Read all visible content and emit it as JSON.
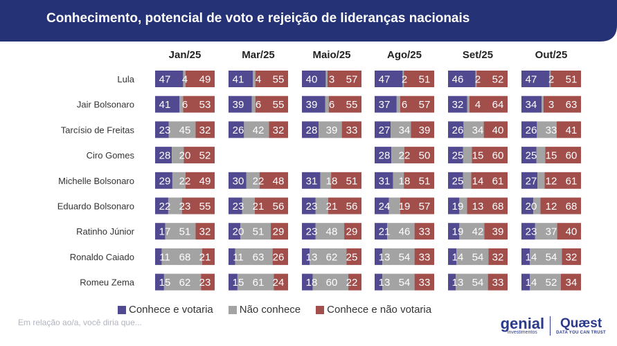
{
  "title": "Conhecimento, potencial de voto e rejeição de lideranças nacionais",
  "footnote": "Em relação ao/a, você diria que...",
  "logos": {
    "genial": "genial",
    "genial_sub": "investimentos",
    "quaest": "Quæst",
    "quaest_sub": "DATA YOU CAN TRUST"
  },
  "colors": {
    "conhece_votaria": "#514a91",
    "nao_conhece": "#a3a3a3",
    "nao_votaria": "#a24e4b",
    "header": "#253276"
  },
  "legend": [
    {
      "label": "Conhece e votaria",
      "color": "#514a91"
    },
    {
      "label": "Não conhece",
      "color": "#a3a3a3"
    },
    {
      "label": "Conhece e não votaria",
      "color": "#a24e4b"
    }
  ],
  "chart_data": {
    "type": "bar",
    "stacked": true,
    "orientation": "horizontal",
    "periods": [
      "Jan/25",
      "Mar/25",
      "Maio/25",
      "Ago/25",
      "Set/25",
      "Out/25"
    ],
    "categories": [
      "Lula",
      "Jair Bolsonaro",
      "Tarcísio de Freitas",
      "Ciro Gomes",
      "Michelle Bolsonaro",
      "Eduardo Bolsonaro",
      "Ratinho Júnior",
      "Ronaldo Caiado",
      "Romeu Zema"
    ],
    "series_names": [
      "Conhece e votaria",
      "Não conhece",
      "Conhece e não votaria"
    ],
    "values": [
      [
        [
          47,
          4,
          49
        ],
        [
          41,
          4,
          55
        ],
        [
          40,
          3,
          57
        ],
        [
          47,
          2,
          51
        ],
        [
          46,
          2,
          52
        ],
        [
          47,
          2,
          51
        ]
      ],
      [
        [
          41,
          6,
          53
        ],
        [
          39,
          6,
          55
        ],
        [
          39,
          6,
          55
        ],
        [
          37,
          6,
          57
        ],
        [
          32,
          4,
          64
        ],
        [
          34,
          3,
          63
        ]
      ],
      [
        [
          23,
          45,
          32
        ],
        [
          26,
          42,
          32
        ],
        [
          28,
          39,
          33
        ],
        [
          27,
          34,
          39
        ],
        [
          26,
          34,
          40
        ],
        [
          26,
          33,
          41
        ]
      ],
      [
        [
          28,
          20,
          52
        ],
        null,
        null,
        [
          28,
          22,
          50
        ],
        [
          25,
          15,
          60
        ],
        [
          25,
          15,
          60
        ]
      ],
      [
        [
          29,
          22,
          49
        ],
        [
          30,
          22,
          48
        ],
        [
          31,
          18,
          51
        ],
        [
          31,
          18,
          51
        ],
        [
          25,
          14,
          61
        ],
        [
          27,
          12,
          61
        ]
      ],
      [
        [
          22,
          23,
          55
        ],
        [
          23,
          21,
          56
        ],
        [
          23,
          21,
          56
        ],
        [
          24,
          19,
          57
        ],
        [
          19,
          13,
          68
        ],
        [
          20,
          12,
          68
        ]
      ],
      [
        [
          17,
          51,
          32
        ],
        [
          20,
          51,
          29
        ],
        [
          23,
          48,
          29
        ],
        [
          21,
          46,
          33
        ],
        [
          19,
          42,
          39
        ],
        [
          23,
          37,
          40
        ]
      ],
      [
        [
          11,
          68,
          21
        ],
        [
          11,
          63,
          26
        ],
        [
          13,
          62,
          25
        ],
        [
          13,
          54,
          33
        ],
        [
          14,
          54,
          32
        ],
        [
          14,
          54,
          32
        ]
      ],
      [
        [
          15,
          62,
          23
        ],
        [
          15,
          61,
          24
        ],
        [
          18,
          60,
          22
        ],
        [
          13,
          54,
          33
        ],
        [
          13,
          54,
          33
        ],
        [
          14,
          52,
          34
        ]
      ]
    ]
  }
}
